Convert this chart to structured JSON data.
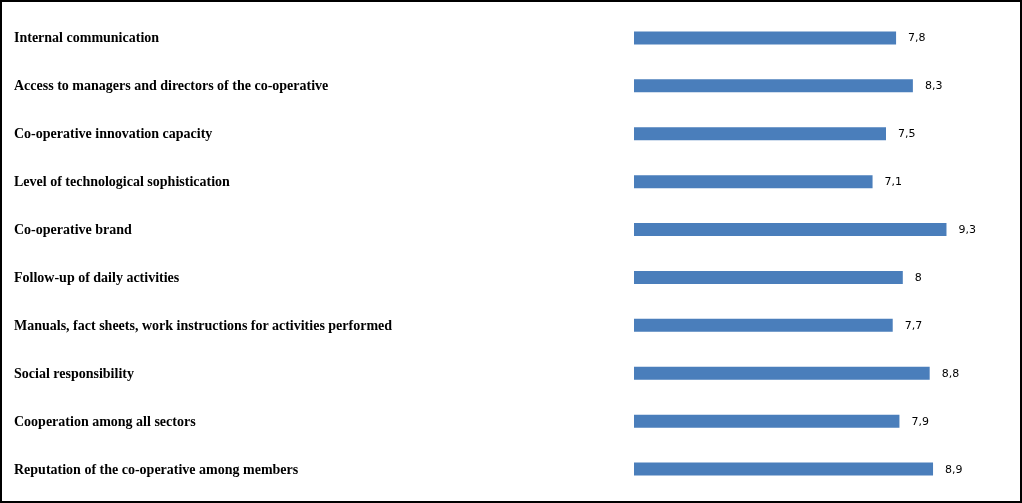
{
  "chart_data": {
    "type": "bar",
    "orientation": "horizontal",
    "categories": [
      "Internal communication",
      "Access to managers and directors of the co-operative",
      "Co-operative innovation capacity",
      "Level of technological sophistication",
      "Co-operative brand",
      "Follow-up of daily activities",
      "Manuals, fact sheets, work instructions for activities performed",
      "Social responsibility",
      "Cooperation among all sectors",
      "Reputation of the co-operative among members"
    ],
    "values": [
      7.8,
      8.3,
      7.5,
      7.1,
      9.3,
      8,
      7.7,
      8.8,
      7.9,
      8.9
    ],
    "value_labels": [
      "7,8",
      "8,3",
      "7,5",
      "7,1",
      "9,3",
      "8",
      "7,7",
      "8,8",
      "7,9",
      "8,9"
    ],
    "color": "#4a7ebb"
  }
}
